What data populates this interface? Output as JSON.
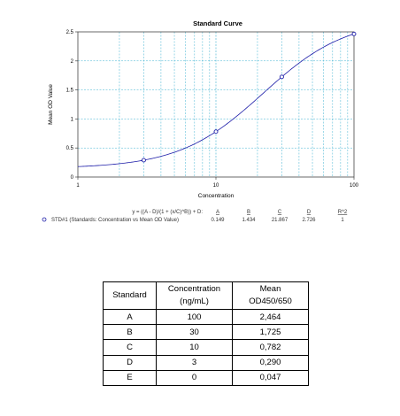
{
  "chart_data": {
    "type": "scatter",
    "title": "Standard Curve",
    "xlabel": "Concentration",
    "ylabel": "Mean OD Value",
    "x_scale": "log",
    "xlim": [
      1,
      100
    ],
    "ylim": [
      0,
      2.5
    ],
    "x_ticks": [
      "1",
      "10",
      "100"
    ],
    "y_ticks": [
      "0",
      "0.5",
      "1",
      "1.5",
      "2",
      "2.5"
    ],
    "grid": true,
    "series": [
      {
        "name": "STD#1 (Standards: Concentration vs Mean OD Value)",
        "x": [
          3,
          10,
          30,
          100
        ],
        "y": [
          0.29,
          0.782,
          1.725,
          2.464
        ]
      }
    ],
    "fit": {
      "A": 0.149,
      "B": 1.434,
      "C": 21.867,
      "D": 2.726
    },
    "colors": {
      "series": "#1c1ca8",
      "grid": "#3ab0d0",
      "axis": "#444444"
    }
  },
  "legend": {
    "equation": "y = ((A - D)/(1 + (x/C)^B)) + D:",
    "headers": [
      "A",
      "B",
      "C",
      "D",
      "R^2"
    ],
    "label": "STD#1 (Standards: Concentration vs Mean OD Value)",
    "values": [
      "0.149",
      "1.434",
      "21.867",
      "2.726",
      "1"
    ]
  },
  "table": {
    "headers": {
      "c1": "Standard",
      "c2a": "Concentration",
      "c2b": "(ng/mL)",
      "c3a": "Mean",
      "c3b": "OD450/650"
    },
    "rows": [
      {
        "std": "A",
        "conc": "100",
        "od": "2,464"
      },
      {
        "std": "B",
        "conc": "30",
        "od": "1,725"
      },
      {
        "std": "C",
        "conc": "10",
        "od": "0,782"
      },
      {
        "std": "D",
        "conc": "3",
        "od": "0,290"
      },
      {
        "std": "E",
        "conc": "0",
        "od": "0,047"
      }
    ]
  }
}
